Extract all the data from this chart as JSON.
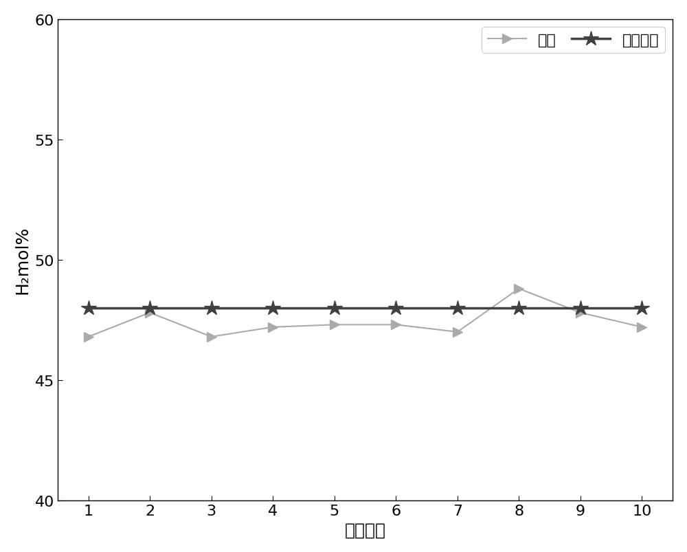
{
  "x": [
    1,
    2,
    3,
    4,
    5,
    6,
    7,
    8,
    9,
    10
  ],
  "experiment_y": [
    46.8,
    47.8,
    46.8,
    47.2,
    47.3,
    47.3,
    47.0,
    48.8,
    47.8,
    47.2
  ],
  "simulation_y": [
    48.0,
    48.0,
    48.0,
    48.0,
    48.0,
    48.0,
    48.0,
    48.0,
    48.0,
    48.0
  ],
  "experiment_label": "实验",
  "simulation_label": "模拟系统",
  "xlabel": "实验次数",
  "ylabel": "H₂mol%",
  "ylim": [
    40,
    60
  ],
  "xlim": [
    0.5,
    10.5
  ],
  "yticks": [
    40,
    45,
    50,
    55,
    60
  ],
  "xticks": [
    1,
    2,
    3,
    4,
    5,
    6,
    7,
    8,
    9,
    10
  ],
  "experiment_color": "#aaaaaa",
  "simulation_color": "#404040",
  "linewidth_exp": 1.5,
  "linewidth_sim": 2.5,
  "markersize_exp": 10,
  "markersize_sim": 16,
  "figsize": [
    10.0,
    8.04
  ],
  "dpi": 100,
  "background_color": "#ffffff",
  "legend_fontsize": 16,
  "tick_fontsize": 16,
  "label_fontsize": 18
}
